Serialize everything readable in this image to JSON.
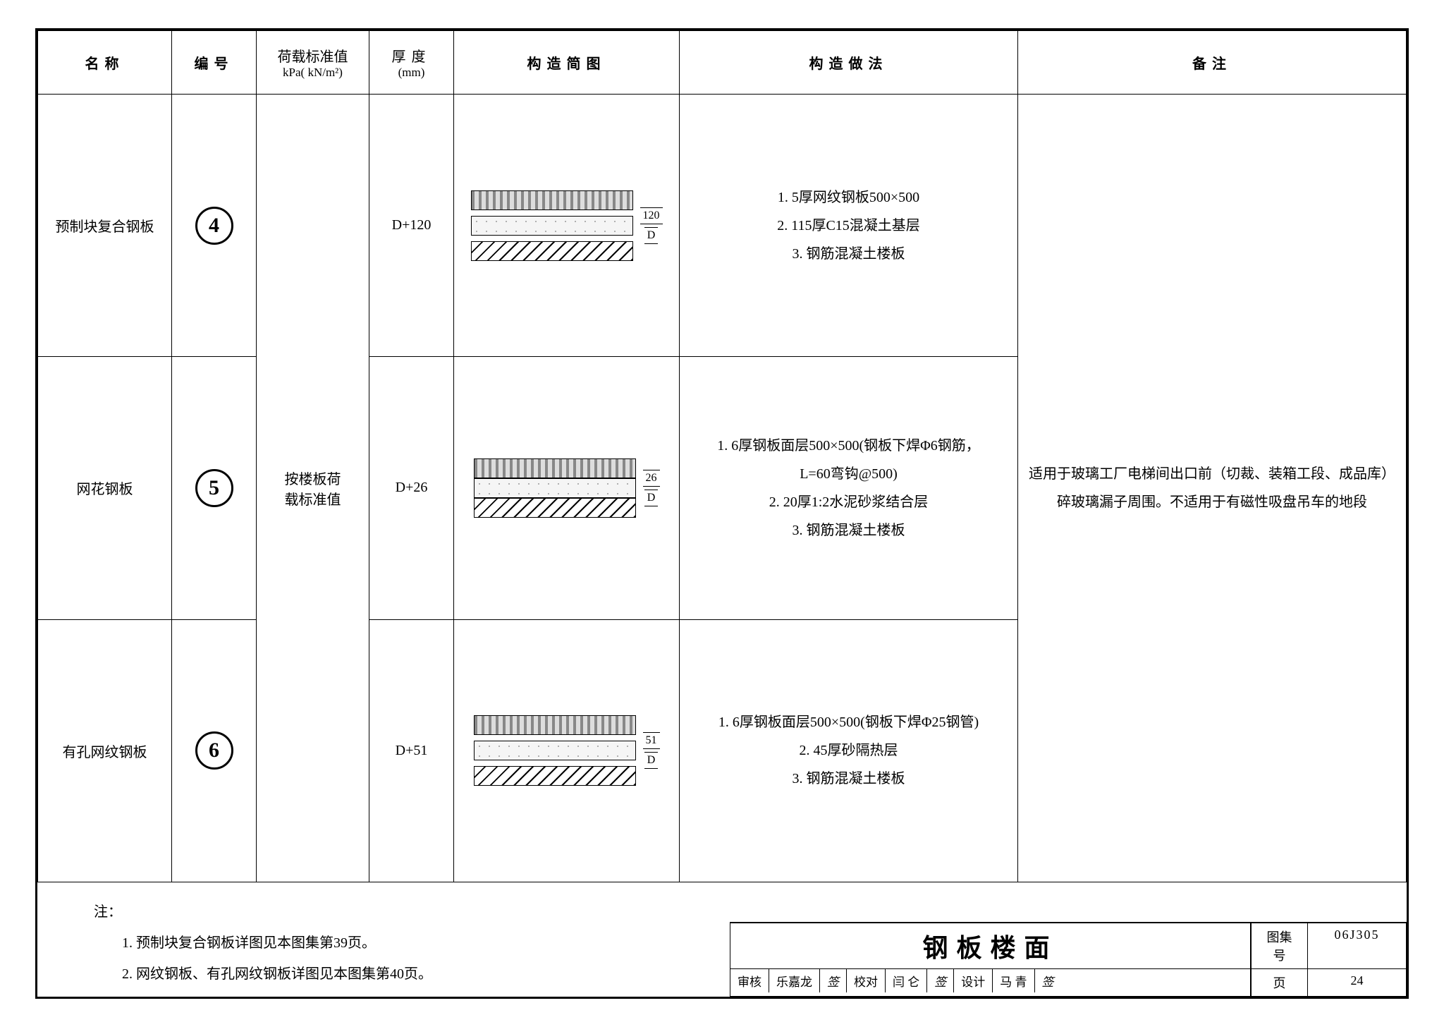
{
  "headers": {
    "name": "名称",
    "code": "编号",
    "load": "荷载标准值",
    "load_unit": "kPa( kN/m²)",
    "thickness": "厚度",
    "thickness_unit": "(mm)",
    "diagram": "构造简图",
    "method": "构造做法",
    "remark": "备注"
  },
  "rows": [
    {
      "name": "预制块复合钢板",
      "code": "4",
      "thickness": "D+120",
      "dims": [
        "120",
        "D"
      ],
      "method": "1. 5厚网纹钢板500×500\n2. 115厚C15混凝土基层\n3. 钢筋混凝土楼板",
      "layer_gap": true,
      "layers": [
        "hatch-top",
        "hatch-b",
        "hatch-c"
      ]
    },
    {
      "name": "网花钢板",
      "code": "5",
      "thickness": "D+26",
      "dims": [
        "26",
        "D"
      ],
      "method": "1. 6厚钢板面层500×500(钢板下焊Φ6钢筋，\n   L=60弯钩@500)\n2. 20厚1:2水泥砂浆结合层\n3. 钢筋混凝土楼板",
      "layer_gap": false,
      "layers": [
        "hatch-top",
        "hatch-b",
        "hatch-c"
      ]
    },
    {
      "name": "有孔网纹钢板",
      "code": "6",
      "thickness": "D+51",
      "dims": [
        "51",
        "D"
      ],
      "method": "1. 6厚钢板面层500×500(钢板下焊Φ25钢管)\n2. 45厚砂隔热层\n3. 钢筋混凝土楼板",
      "layer_gap": true,
      "layers": [
        "hatch-top",
        "hatch-b",
        "hatch-c"
      ]
    }
  ],
  "load_merged": "按楼板荷\n载标准值",
  "remark_merged": "适用于玻璃工厂电梯间出口前（切裁、装箱工段、成品库）碎玻璃漏子周围。不适用于有磁性吸盘吊车的地段",
  "notes_title": "注：",
  "notes": [
    "1. 预制块复合钢板详图见本图集第39页。",
    "2. 网纹钢板、有孔网纹钢板详图见本图集第40页。"
  ],
  "titleblock": {
    "doc_title": "钢板楼面",
    "set_label": "图集号",
    "set_no": "06J305",
    "page_label": "页",
    "page_no": "24",
    "审核_label": "审核",
    "审核_name": "乐嘉龙",
    "校对_label": "校对",
    "校对_name": "闫 仑",
    "设计_label": "设计",
    "设计_name": "马 青"
  }
}
